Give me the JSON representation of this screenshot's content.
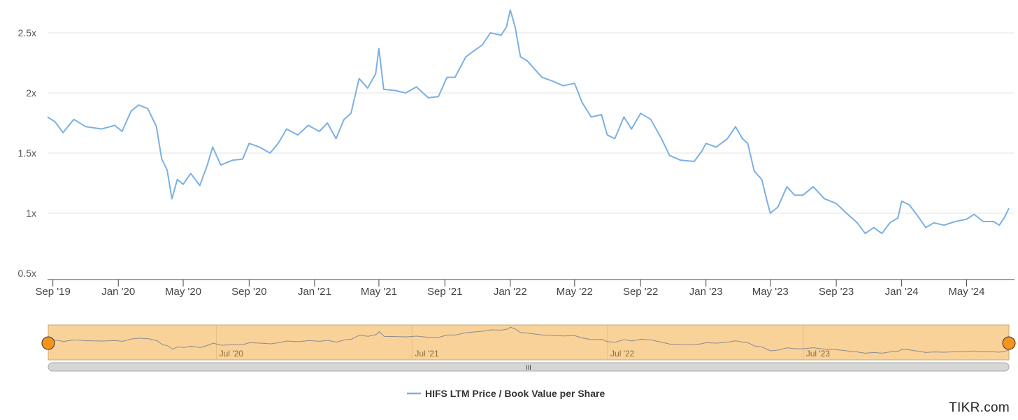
{
  "chart_data": {
    "type": "line",
    "title": "",
    "xlabel": "",
    "ylabel": "",
    "ylim": [
      0.5,
      2.7
    ],
    "yticks": [
      "0.5x",
      "1x",
      "1.5x",
      "2x",
      "2.5x"
    ],
    "ytick_values": [
      0.5,
      1.0,
      1.5,
      2.0,
      2.5
    ],
    "xlim": [
      "2019-08-22",
      "2024-07-19"
    ],
    "xticks": [
      "Sep '19",
      "Jan '20",
      "May '20",
      "Sep '20",
      "Jan '21",
      "May '21",
      "Sep '21",
      "Jan '22",
      "May '22",
      "Sep '22",
      "Jan '23",
      "May '23",
      "Sep '23",
      "Jan '24",
      "May '24"
    ],
    "xtick_dates": [
      "2019-09-01",
      "2020-01-01",
      "2020-05-01",
      "2020-09-01",
      "2021-01-01",
      "2021-05-01",
      "2021-09-01",
      "2022-01-01",
      "2022-05-01",
      "2022-09-01",
      "2023-01-01",
      "2023-05-01",
      "2023-09-01",
      "2024-01-01",
      "2024-05-01"
    ],
    "grid": true,
    "legend_position": "bottom-center",
    "series": [
      {
        "name": "HIFS LTM Price / Book Value per Share",
        "color": "#7cb0e2",
        "points": [
          [
            "2019-08-22",
            1.8
          ],
          [
            "2019-09-05",
            1.76
          ],
          [
            "2019-09-20",
            1.67
          ],
          [
            "2019-10-10",
            1.78
          ],
          [
            "2019-11-01",
            1.72
          ],
          [
            "2019-12-01",
            1.7
          ],
          [
            "2019-12-25",
            1.73
          ],
          [
            "2020-01-08",
            1.68
          ],
          [
            "2020-01-25",
            1.85
          ],
          [
            "2020-02-08",
            1.9
          ],
          [
            "2020-02-25",
            1.87
          ],
          [
            "2020-03-12",
            1.72
          ],
          [
            "2020-03-22",
            1.45
          ],
          [
            "2020-04-01",
            1.36
          ],
          [
            "2020-04-10",
            1.12
          ],
          [
            "2020-04-20",
            1.28
          ],
          [
            "2020-05-01",
            1.24
          ],
          [
            "2020-05-15",
            1.33
          ],
          [
            "2020-06-01",
            1.23
          ],
          [
            "2020-06-15",
            1.4
          ],
          [
            "2020-06-25",
            1.55
          ],
          [
            "2020-07-10",
            1.4
          ],
          [
            "2020-08-01",
            1.44
          ],
          [
            "2020-08-20",
            1.45
          ],
          [
            "2020-09-01",
            1.58
          ],
          [
            "2020-09-20",
            1.55
          ],
          [
            "2020-10-10",
            1.5
          ],
          [
            "2020-10-25",
            1.58
          ],
          [
            "2020-11-10",
            1.7
          ],
          [
            "2020-12-01",
            1.65
          ],
          [
            "2020-12-20",
            1.73
          ],
          [
            "2021-01-10",
            1.68
          ],
          [
            "2021-01-25",
            1.75
          ],
          [
            "2021-02-10",
            1.62
          ],
          [
            "2021-02-25",
            1.78
          ],
          [
            "2021-03-10",
            1.83
          ],
          [
            "2021-03-25",
            2.12
          ],
          [
            "2021-04-10",
            2.04
          ],
          [
            "2021-04-25",
            2.16
          ],
          [
            "2021-05-01",
            2.37
          ],
          [
            "2021-05-10",
            2.03
          ],
          [
            "2021-06-01",
            2.02
          ],
          [
            "2021-06-20",
            2.0
          ],
          [
            "2021-07-10",
            2.05
          ],
          [
            "2021-08-01",
            1.96
          ],
          [
            "2021-08-20",
            1.97
          ],
          [
            "2021-09-05",
            2.13
          ],
          [
            "2021-09-20",
            2.13
          ],
          [
            "2021-10-10",
            2.3
          ],
          [
            "2021-10-25",
            2.35
          ],
          [
            "2021-11-10",
            2.4
          ],
          [
            "2021-11-25",
            2.5
          ],
          [
            "2021-12-15",
            2.48
          ],
          [
            "2021-12-25",
            2.55
          ],
          [
            "2022-01-01",
            2.69
          ],
          [
            "2022-01-10",
            2.55
          ],
          [
            "2022-01-20",
            2.3
          ],
          [
            "2022-02-01",
            2.27
          ],
          [
            "2022-02-15",
            2.2
          ],
          [
            "2022-03-01",
            2.13
          ],
          [
            "2022-03-20",
            2.1
          ],
          [
            "2022-04-10",
            2.06
          ],
          [
            "2022-05-01",
            2.08
          ],
          [
            "2022-05-15",
            1.92
          ],
          [
            "2022-06-01",
            1.8
          ],
          [
            "2022-06-20",
            1.82
          ],
          [
            "2022-07-01",
            1.65
          ],
          [
            "2022-07-15",
            1.62
          ],
          [
            "2022-08-01",
            1.8
          ],
          [
            "2022-08-15",
            1.7
          ],
          [
            "2022-09-01",
            1.83
          ],
          [
            "2022-09-20",
            1.78
          ],
          [
            "2022-10-10",
            1.62
          ],
          [
            "2022-10-25",
            1.48
          ],
          [
            "2022-11-15",
            1.44
          ],
          [
            "2022-12-10",
            1.43
          ],
          [
            "2022-12-25",
            1.52
          ],
          [
            "2023-01-01",
            1.58
          ],
          [
            "2023-01-20",
            1.55
          ],
          [
            "2023-02-10",
            1.62
          ],
          [
            "2023-02-25",
            1.72
          ],
          [
            "2023-03-10",
            1.62
          ],
          [
            "2023-03-20",
            1.58
          ],
          [
            "2023-04-01",
            1.35
          ],
          [
            "2023-04-15",
            1.28
          ],
          [
            "2023-04-25",
            1.1
          ],
          [
            "2023-05-01",
            1.0
          ],
          [
            "2023-05-15",
            1.05
          ],
          [
            "2023-06-01",
            1.22
          ],
          [
            "2023-06-15",
            1.15
          ],
          [
            "2023-07-01",
            1.15
          ],
          [
            "2023-07-20",
            1.22
          ],
          [
            "2023-08-10",
            1.12
          ],
          [
            "2023-09-01",
            1.08
          ],
          [
            "2023-09-20",
            1.0
          ],
          [
            "2023-10-10",
            0.92
          ],
          [
            "2023-10-25",
            0.83
          ],
          [
            "2023-11-10",
            0.88
          ],
          [
            "2023-11-25",
            0.83
          ],
          [
            "2023-12-10",
            0.92
          ],
          [
            "2023-12-25",
            0.96
          ],
          [
            "2024-01-01",
            1.1
          ],
          [
            "2024-01-15",
            1.07
          ],
          [
            "2024-02-01",
            0.97
          ],
          [
            "2024-02-15",
            0.88
          ],
          [
            "2024-03-01",
            0.92
          ],
          [
            "2024-03-20",
            0.9
          ],
          [
            "2024-04-10",
            0.93
          ],
          [
            "2024-05-01",
            0.95
          ],
          [
            "2024-05-15",
            0.99
          ],
          [
            "2024-06-01",
            0.93
          ],
          [
            "2024-06-20",
            0.93
          ],
          [
            "2024-07-01",
            0.9
          ],
          [
            "2024-07-10",
            0.96
          ],
          [
            "2024-07-19",
            1.04
          ]
        ]
      }
    ]
  },
  "navigator": {
    "labels": [
      "Jul '20",
      "Jul '21",
      "Jul '22",
      "Jul '23"
    ],
    "label_dates": [
      "2020-07-01",
      "2021-07-01",
      "2022-07-01",
      "2023-07-01"
    ],
    "fill_color": "#f9d29a",
    "handle_color": "#f7941d",
    "scrollbar_grip": "III"
  },
  "legend": {
    "label": "HIFS LTM Price / Book Value per Share"
  },
  "brand": "TIKR.com"
}
